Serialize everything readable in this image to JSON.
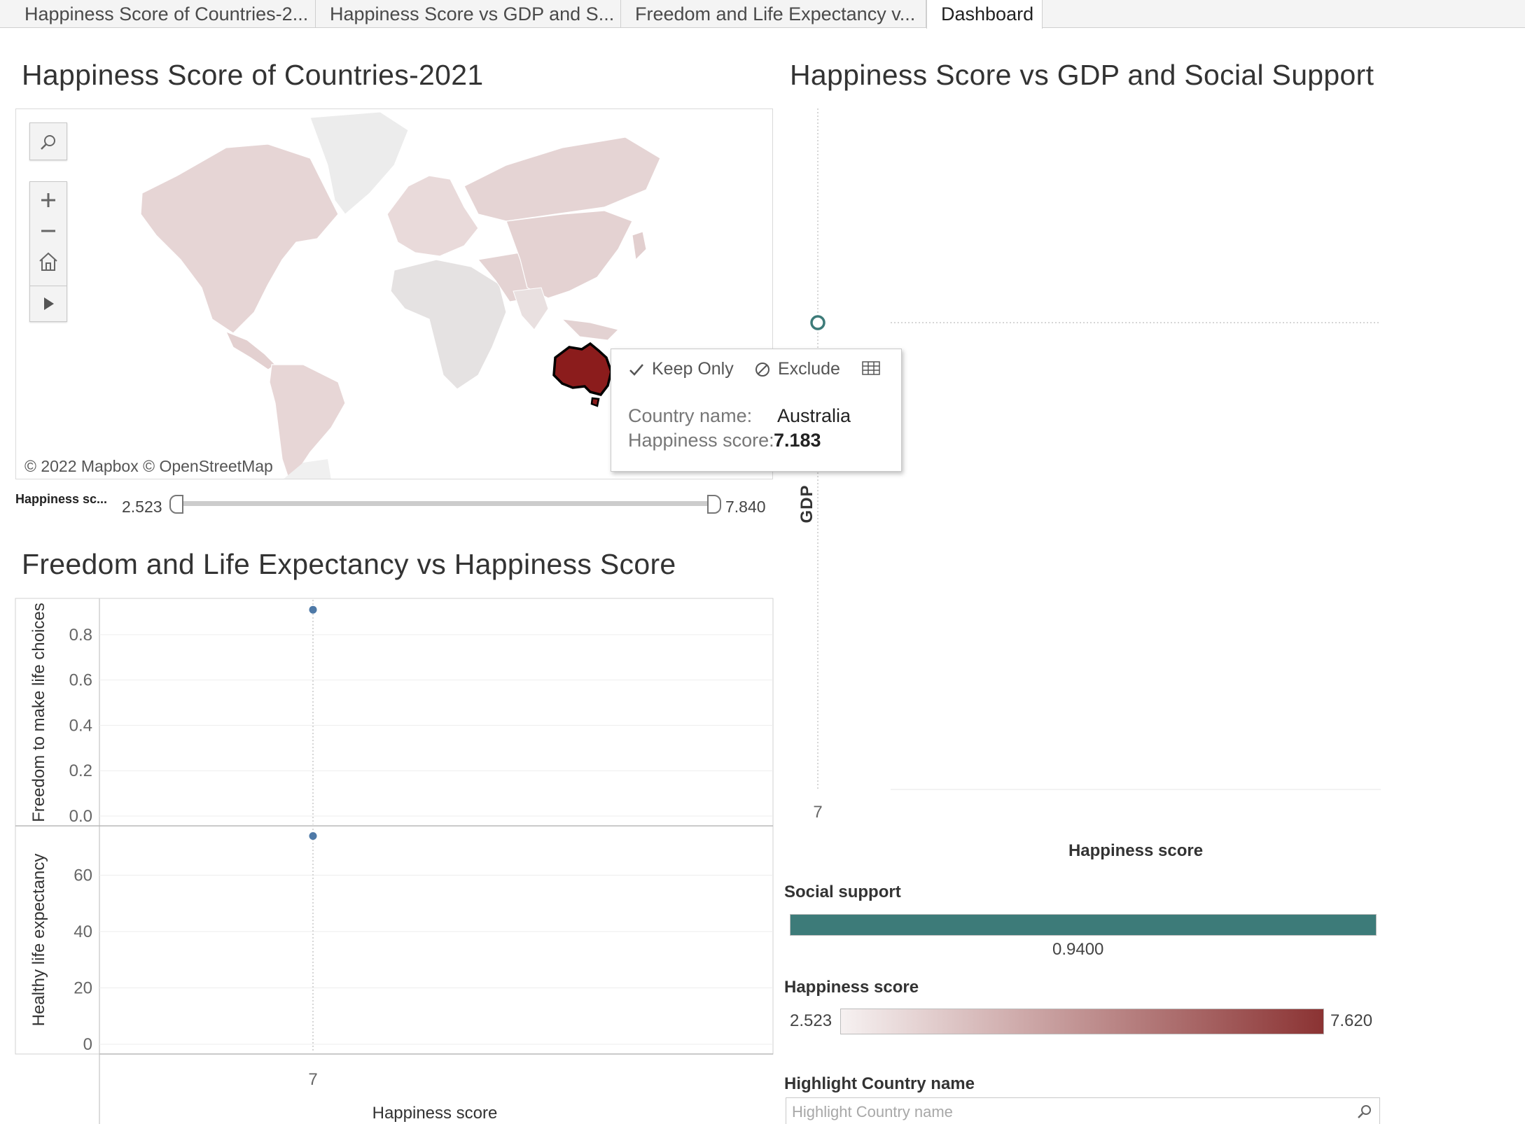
{
  "tabs": [
    {
      "label": "Happiness Score of Countries-2..."
    },
    {
      "label": "Happiness Score vs GDP and S..."
    },
    {
      "label": "Freedom and Life Expectancy v..."
    },
    {
      "label": "Dashboard"
    }
  ],
  "active_tab": "Dashboard",
  "map": {
    "title": "Happiness Score of Countries-2021",
    "attribution": "© 2022 Mapbox  © OpenStreetMap",
    "highlighted_country": "Australia",
    "highlight_color": "#8b1c1c",
    "base_color": "#e6d5d5",
    "tools": [
      "search-icon",
      "zoom-in-icon",
      "zoom-out-icon",
      "home-icon",
      "play-icon"
    ]
  },
  "slider": {
    "label": "Happiness sc...",
    "min": "2.523",
    "max": "7.840"
  },
  "tooltip": {
    "keep_only": "Keep Only",
    "exclude": "Exclude",
    "fields": [
      {
        "key": "Country name:",
        "value": "Australia"
      },
      {
        "key": "Happiness score:",
        "value": "7.183"
      }
    ]
  },
  "freedom_chart": {
    "title": "Freedom and  Life Expectancy vs Happiness Score"
  },
  "gdp_chart": {
    "title": "Happiness Score vs GDP and Social Support"
  },
  "legends": {
    "social_support": {
      "title": "Social support",
      "value": "0.9400",
      "color": "#3d7b79"
    },
    "happiness": {
      "title": "Happiness score",
      "min": "2.523",
      "max": "7.620",
      "color_low": "#f6f1f1",
      "color_high": "#8b3333"
    }
  },
  "highlight_filter": {
    "title": "Highlight Country name",
    "placeholder": "Highlight Country name"
  },
  "chart_data": [
    {
      "type": "scatter",
      "title": "",
      "xlabel": "Happiness score",
      "ylabel": "Freedom to make life choices",
      "x_ticks": [
        "7"
      ],
      "y_ticks": [
        "0.0",
        "0.2",
        "0.4",
        "0.6",
        "0.8"
      ],
      "ylim": [
        0,
        0.96
      ],
      "points": [
        {
          "x": 7.183,
          "y": 0.91
        }
      ],
      "color": "#4e79a7"
    },
    {
      "type": "scatter",
      "title": "",
      "xlabel": "Happiness score",
      "ylabel": "Healthy life expectancy",
      "x_ticks": [
        "7"
      ],
      "y_ticks": [
        "0",
        "20",
        "40",
        "60"
      ],
      "ylim": [
        0,
        77
      ],
      "points": [
        {
          "x": 7.183,
          "y": 73.9
        }
      ],
      "color": "#4e79a7"
    },
    {
      "type": "scatter",
      "title": "",
      "xlabel": "Happiness score",
      "ylabel": "GDP",
      "x_ticks": [
        "7"
      ],
      "points": [
        {
          "x": 7.183,
          "y": 10.8
        }
      ],
      "color": "#3d7b79",
      "marker": "open-circle"
    }
  ]
}
